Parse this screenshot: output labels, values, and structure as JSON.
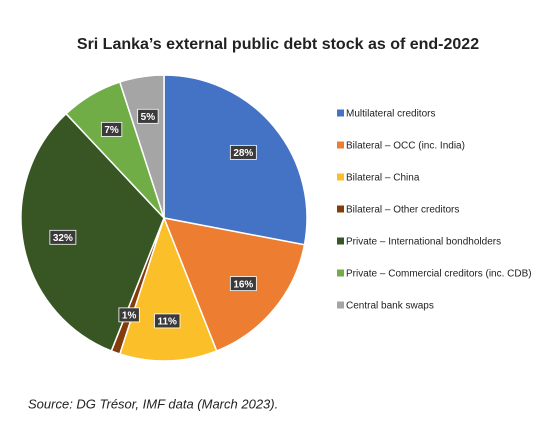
{
  "chart_data": {
    "type": "pie",
    "title": "Sri Lanka’s external public debt stock as of end-2022",
    "categories": [
      "Multilateral creditors",
      "Bilateral – OCC (inc. India)",
      "Bilateral – China",
      "Bilateral – Other creditors",
      "Private – International bondholders",
      "Private – Commercial creditors (inc. CDB)",
      "Central bank swaps"
    ],
    "values": [
      28,
      16,
      11,
      1,
      32,
      7,
      5
    ],
    "value_labels": [
      "28%",
      "16%",
      "11%",
      "1%",
      "32%",
      "7%",
      "5%"
    ],
    "colors": [
      "#4472c4",
      "#ed7d31",
      "#fbbf2a",
      "#843c0c",
      "#375623",
      "#70ad47",
      "#a5a5a5"
    ],
    "legend": "right",
    "source": "Source: DG Trésor, IMF data (March 2023)."
  }
}
